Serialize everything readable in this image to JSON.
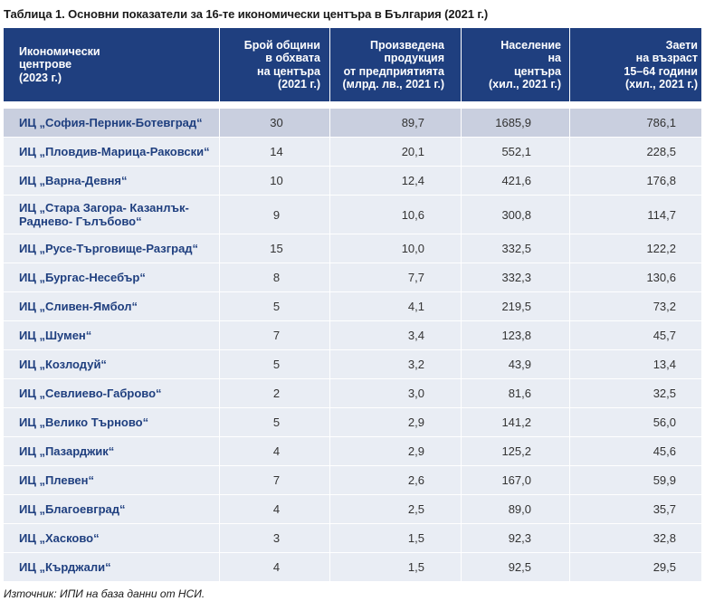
{
  "caption": "Таблица 1. Основни показатели за 16-те икономически центъра в България (2021 г.)",
  "headers": [
    [
      "Икономически",
      "центрове",
      "(2023 г.)"
    ],
    [
      "Брой общини",
      "в обхвата",
      "на центъра",
      "(2021 г.)"
    ],
    [
      "Произведена",
      "продукция",
      "от предприятията",
      "(млрд. лв., 2021 г.)"
    ],
    [
      "Население",
      "на",
      "центъра",
      "(хил., 2021 г.)"
    ],
    [
      "Заети",
      "на възраст",
      "15–64 години",
      "(хил., 2021 г.)"
    ]
  ],
  "rows": [
    {
      "name": [
        "ИЦ „София-Перник-Ботевград“"
      ],
      "municipalities": "30",
      "production": "89,7",
      "population": "1685,9",
      "employed": "786,1"
    },
    {
      "name": [
        "ИЦ „Пловдив-Марица-Раковски“"
      ],
      "municipalities": "14",
      "production": "20,1",
      "population": "552,1",
      "employed": "228,5"
    },
    {
      "name": [
        "ИЦ „Варна-Девня“"
      ],
      "municipalities": "10",
      "production": "12,4",
      "population": "421,6",
      "employed": "176,8"
    },
    {
      "name": [
        "ИЦ „Стара Загора- Казанлък-",
        "Раднево- Гълъбово“"
      ],
      "municipalities": "9",
      "production": "10,6",
      "population": "300,8",
      "employed": "114,7"
    },
    {
      "name": [
        "ИЦ „Русе-Търговище-Разград“"
      ],
      "municipalities": "15",
      "production": "10,0",
      "population": "332,5",
      "employed": "122,2"
    },
    {
      "name": [
        "ИЦ „Бургас-Несебър“"
      ],
      "municipalities": "8",
      "production": "7,7",
      "population": "332,3",
      "employed": "130,6"
    },
    {
      "name": [
        "ИЦ „Сливен-Ямбол“"
      ],
      "municipalities": "5",
      "production": "4,1",
      "population": "219,5",
      "employed": "73,2"
    },
    {
      "name": [
        "ИЦ „Шумен“"
      ],
      "municipalities": "7",
      "production": "3,4",
      "population": "123,8",
      "employed": "45,7"
    },
    {
      "name": [
        "ИЦ „Козлодуй“"
      ],
      "municipalities": "5",
      "production": "3,2",
      "population": "43,9",
      "employed": "13,4"
    },
    {
      "name": [
        "ИЦ „Севлиево-Габрово“"
      ],
      "municipalities": "2",
      "production": "3,0",
      "population": "81,6",
      "employed": "32,5"
    },
    {
      "name": [
        "ИЦ „Велико Търново“"
      ],
      "municipalities": "5",
      "production": "2,9",
      "population": "141,2",
      "employed": "56,0"
    },
    {
      "name": [
        "ИЦ „Пазарджик“"
      ],
      "municipalities": "4",
      "production": "2,9",
      "population": "125,2",
      "employed": "45,6"
    },
    {
      "name": [
        "ИЦ „Плевен“"
      ],
      "municipalities": "7",
      "production": "2,6",
      "population": "167,0",
      "employed": "59,9"
    },
    {
      "name": [
        "ИЦ „Благоевград“"
      ],
      "municipalities": "4",
      "production": "2,5",
      "population": "89,0",
      "employed": "35,7"
    },
    {
      "name": [
        "ИЦ „Хасково“"
      ],
      "municipalities": "3",
      "production": "1,5",
      "population": "92,3",
      "employed": "32,8"
    },
    {
      "name": [
        "ИЦ „Кърджали“"
      ],
      "municipalities": "4",
      "production": "1,5",
      "population": "92,5",
      "employed": "29,5"
    }
  ],
  "source": "Източник: ИПИ на база данни от НСИ.",
  "colors": {
    "header_bg": "#1f3f7f",
    "row_bg": "#e9edf4",
    "highlight_row_bg": "#c9cfdf",
    "name_text": "#1f3f7f"
  }
}
